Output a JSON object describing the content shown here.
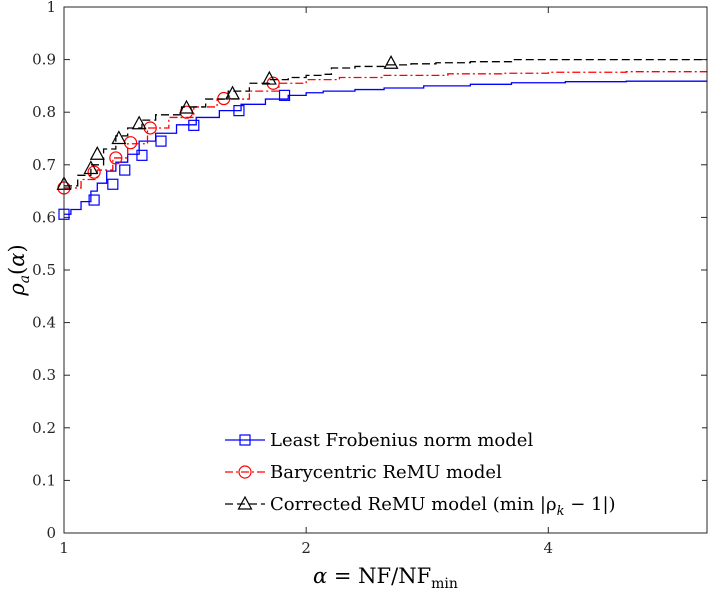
{
  "chart_data": {
    "type": "line",
    "xscale": "log2",
    "xlim": [
      1,
      6.3
    ],
    "ylim": [
      0,
      1
    ],
    "xticks": [
      1,
      2,
      4
    ],
    "xtick_labels": [
      "1",
      "2",
      "4"
    ],
    "yticks": [
      0,
      0.1,
      0.2,
      0.3,
      0.4,
      0.5,
      0.6,
      0.7,
      0.8,
      0.9,
      1
    ],
    "ytick_labels": [
      "0",
      "0.1",
      "0.2",
      "0.3",
      "0.4",
      "0.5",
      "0.6",
      "0.7",
      "0.8",
      "0.9",
      "1"
    ],
    "xlabel": "α = NF/NF_min",
    "ylabel": "ρ_a(α)",
    "legend_position": "bottom-right",
    "series": [
      {
        "name": "Least Frobenius norm model",
        "legend_label": "Least Frobenius norm model",
        "color": "#0000ff",
        "dash": "solid",
        "marker": "square",
        "x": [
          1,
          1.02,
          1.05,
          1.08,
          1.1,
          1.13,
          1.16,
          1.2,
          1.24,
          1.3,
          1.38,
          1.46,
          1.56,
          1.66,
          1.78,
          1.9,
          2.0,
          2.1,
          2.3,
          2.5,
          2.8,
          3.2,
          3.6,
          4.2,
          5.0,
          6.3
        ],
        "y": [
          0.606,
          0.615,
          0.63,
          0.65,
          0.665,
          0.688,
          0.705,
          0.72,
          0.745,
          0.76,
          0.776,
          0.79,
          0.803,
          0.815,
          0.825,
          0.832,
          0.837,
          0.84,
          0.843,
          0.846,
          0.85,
          0.853,
          0.856,
          0.858,
          0.859,
          0.86
        ],
        "marker_x": [
          1,
          1.09,
          1.15,
          1.19,
          1.25,
          1.32,
          1.45,
          1.65,
          1.88
        ],
        "marker_y": [
          0.606,
          0.633,
          0.663,
          0.69,
          0.718,
          0.745,
          0.775,
          0.803,
          0.832
        ]
      },
      {
        "name": "Barycentric ReMU model",
        "legend_label": "Barycentric ReMU model",
        "color": "#ff0000",
        "dash": "dashdot",
        "marker": "circle",
        "x": [
          1,
          1.05,
          1.1,
          1.15,
          1.2,
          1.27,
          1.35,
          1.45,
          1.55,
          1.7,
          1.85,
          2.0,
          2.2,
          2.5,
          3.0,
          3.5,
          4.0,
          5.0,
          6.3
        ],
        "y": [
          0.656,
          0.672,
          0.69,
          0.713,
          0.74,
          0.77,
          0.79,
          0.81,
          0.825,
          0.84,
          0.855,
          0.862,
          0.866,
          0.87,
          0.873,
          0.874,
          0.876,
          0.877,
          0.878
        ],
        "marker_x": [
          1,
          1.09,
          1.16,
          1.21,
          1.28,
          1.42,
          1.58,
          1.82
        ],
        "marker_y": [
          0.656,
          0.686,
          0.713,
          0.742,
          0.77,
          0.8,
          0.826,
          0.855
        ]
      },
      {
        "name": "Corrected ReMU model",
        "legend_label": "Corrected ReMU model (min |ρ",
        "legend_subscript": "k",
        "legend_suffix": " − 1|)",
        "color": "#000000",
        "dash": "dashed",
        "marker": "triangle",
        "x": [
          1,
          1.04,
          1.08,
          1.12,
          1.16,
          1.2,
          1.25,
          1.3,
          1.4,
          1.5,
          1.6,
          1.7,
          1.8,
          1.9,
          2.0,
          2.1,
          2.15,
          2.3,
          2.5,
          2.7,
          2.9,
          3.2,
          3.6,
          4.2,
          5.0,
          6.3
        ],
        "y": [
          0.66,
          0.68,
          0.7,
          0.73,
          0.755,
          0.77,
          0.785,
          0.795,
          0.81,
          0.825,
          0.84,
          0.855,
          0.862,
          0.866,
          0.87,
          0.872,
          0.884,
          0.887,
          0.89,
          0.892,
          0.894,
          0.896,
          0.9,
          0.9,
          0.9,
          0.9
        ],
        "marker_x": [
          1,
          1.08,
          1.1,
          1.17,
          1.24,
          1.42,
          1.62,
          1.8,
          2.55
        ],
        "marker_y": [
          0.663,
          0.693,
          0.72,
          0.75,
          0.778,
          0.808,
          0.835,
          0.863,
          0.893
        ]
      }
    ]
  }
}
